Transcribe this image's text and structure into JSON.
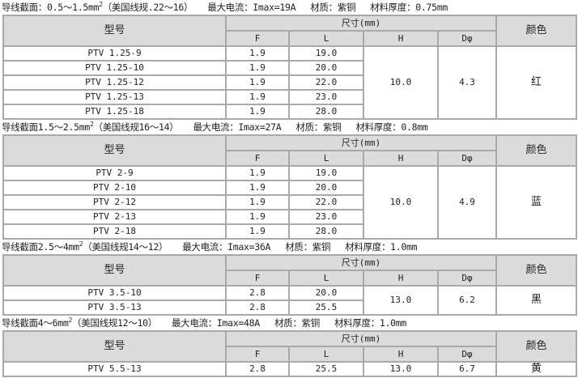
{
  "headers": {
    "model": "型号",
    "size": "尺寸(mm)",
    "F": "F",
    "L": "L",
    "H": "H",
    "D": "Dφ",
    "color": "颜色"
  },
  "sections": [
    {
      "caption": {
        "a": "导线截面：0.5～1.5mm",
        "sup": "2",
        "b": "（美国线规.22～16）",
        "current": "最大电流：Imax=19A",
        "material": "材质：紫铜",
        "thickness": "材料厚度：0.75mm"
      },
      "rows": [
        {
          "model": "PTV 1.25-9",
          "F": "1.9",
          "L": "19.0"
        },
        {
          "model": "PTV 1.25-10",
          "F": "1.9",
          "L": "20.0"
        },
        {
          "model": "PTV 1.25-12",
          "F": "1.9",
          "L": "22.0"
        },
        {
          "model": "PTV 1.25-13",
          "F": "1.9",
          "L": "23.0"
        },
        {
          "model": "PTV 1.25-18",
          "F": "1.9",
          "L": "28.0"
        }
      ],
      "H": "10.0",
      "D": "4.3",
      "color": "红"
    },
    {
      "caption": {
        "a": "导线截面1.5～2.5mm",
        "sup": "2",
        "b": "（美国线规16～14）",
        "current": "最大电流：Imax=27A",
        "material": "材质：紫铜",
        "thickness": "材料厚度：0.8mm"
      },
      "rows": [
        {
          "model": "PTV 2-9",
          "F": "1.9",
          "L": "19.0"
        },
        {
          "model": "PTV 2-10",
          "F": "1.9",
          "L": "20.0"
        },
        {
          "model": "PTV 2-12",
          "F": "1.9",
          "L": "22.0"
        },
        {
          "model": "PTV 2-13",
          "F": "1.9",
          "L": "23.0"
        },
        {
          "model": "PTV 2-18",
          "F": "1.9",
          "L": "28.0"
        }
      ],
      "H": "10.0",
      "D": "4.9",
      "color": "蓝"
    },
    {
      "caption": {
        "a": "导线截面2.5～4mm",
        "sup": "2",
        "b": "（美国线规14～12）",
        "current": "最大电流：Imax=36A",
        "material": "材质：紫铜",
        "thickness": "材料厚度：1.0mm"
      },
      "rows": [
        {
          "model": "PTV 3.5-10",
          "F": "2.8",
          "L": "20.0"
        },
        {
          "model": "PTV 3.5-13",
          "F": "2.8",
          "L": "25.5"
        }
      ],
      "H": "13.0",
      "D": "6.2",
      "color": "黑"
    },
    {
      "caption": {
        "a": "导线截面4～6mm",
        "sup": "2",
        "b": "（美国线规12～10）",
        "current": "最大电流：Imax=48A",
        "material": "材质：紫铜",
        "thickness": "材料厚度：1.0mm"
      },
      "rows": [
        {
          "model": "PTV 5.5-13",
          "F": "2.8",
          "L": "25.5",
          "H": "13.0",
          "D": "6.7",
          "color": "黄"
        }
      ]
    }
  ]
}
